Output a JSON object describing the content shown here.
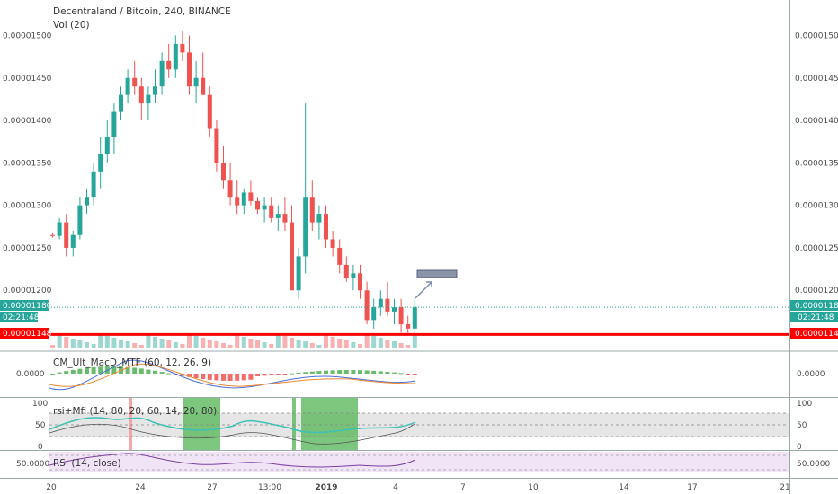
{
  "title": "Decentraland / Bitcoin, 240, BINANCE",
  "vol_label": "Vol (20)",
  "price_axis": {
    "ticks": [
      "0.00001500",
      "0.00001450",
      "0.00001400",
      "0.00001350",
      "0.00001300",
      "0.00001250",
      "0.00001200"
    ],
    "current_price": "0.00001180",
    "countdown": "02:21:48",
    "support_label": "0.00001148"
  },
  "macd": {
    "label": "CM_Ult_MacD_MTF (60, 12, 26, 9)",
    "tick": "0.0000"
  },
  "rsimfi": {
    "label": "rsi+Mfi (14, 80, 20, 60, 14, 20, 80)",
    "ticks": [
      "100",
      "50",
      "0"
    ]
  },
  "rsi": {
    "label": "RSI (14, close)",
    "tick": "50.0000"
  },
  "time_axis": [
    "20",
    "24",
    "27",
    "13:00",
    "2019",
    "4",
    "7",
    "10",
    "14",
    "17",
    "21"
  ],
  "colors": {
    "up": "#26a69a",
    "down": "#ef5350",
    "support": "#ff0000",
    "current": "#26a69a",
    "rsi_line": "#7b3fa0",
    "rsi_band": "#f1e4f7",
    "green_zone": "#5cb85c",
    "pink_zone": "#f4a7a7"
  },
  "chart_data": {
    "type": "candlestick",
    "pair": "MANA/BTC",
    "interval": "240",
    "ylim": [
      1.14e-05,
      1.51e-05
    ],
    "support": 1.148e-05,
    "last": 1.18e-05,
    "series": [
      {
        "values": [
          [
            1.265,
            1.268,
            1.262,
            1.264
          ],
          [
            1.264,
            1.285,
            1.26,
            1.28
          ],
          [
            1.28,
            1.29,
            1.24,
            1.25
          ],
          [
            1.25,
            1.27,
            1.24,
            1.265
          ],
          [
            1.265,
            1.31,
            1.26,
            1.3
          ],
          [
            1.3,
            1.32,
            1.29,
            1.31
          ],
          [
            1.31,
            1.35,
            1.3,
            1.34
          ],
          [
            1.34,
            1.38,
            1.32,
            1.36
          ],
          [
            1.36,
            1.4,
            1.35,
            1.38
          ],
          [
            1.38,
            1.42,
            1.36,
            1.41
          ],
          [
            1.41,
            1.44,
            1.4,
            1.43
          ],
          [
            1.43,
            1.46,
            1.42,
            1.45
          ],
          [
            1.45,
            1.47,
            1.43,
            1.44
          ],
          [
            1.44,
            1.45,
            1.4,
            1.42
          ],
          [
            1.42,
            1.44,
            1.4,
            1.43
          ],
          [
            1.43,
            1.46,
            1.42,
            1.44
          ],
          [
            1.44,
            1.48,
            1.43,
            1.47
          ],
          [
            1.47,
            1.49,
            1.45,
            1.46
          ],
          [
            1.46,
            1.5,
            1.45,
            1.49
          ],
          [
            1.49,
            1.505,
            1.47,
            1.48
          ],
          [
            1.48,
            1.5,
            1.43,
            1.44
          ],
          [
            1.44,
            1.47,
            1.42,
            1.45
          ],
          [
            1.45,
            1.48,
            1.44,
            1.43
          ],
          [
            1.43,
            1.44,
            1.38,
            1.39
          ],
          [
            1.39,
            1.4,
            1.34,
            1.35
          ],
          [
            1.35,
            1.37,
            1.32,
            1.33
          ],
          [
            1.33,
            1.35,
            1.3,
            1.31
          ],
          [
            1.31,
            1.33,
            1.29,
            1.3
          ],
          [
            1.3,
            1.32,
            1.29,
            1.315
          ],
          [
            1.315,
            1.33,
            1.3,
            1.305
          ],
          [
            1.305,
            1.31,
            1.29,
            1.295
          ],
          [
            1.295,
            1.31,
            1.28,
            1.3
          ],
          [
            1.3,
            1.31,
            1.28,
            1.285
          ],
          [
            1.285,
            1.3,
            1.27,
            1.29
          ],
          [
            1.29,
            1.31,
            1.27,
            1.28
          ],
          [
            1.28,
            1.3,
            1.25,
            1.2
          ],
          [
            1.2,
            1.25,
            1.19,
            1.24
          ],
          [
            1.24,
            1.42,
            1.22,
            1.31
          ],
          [
            1.31,
            1.33,
            1.27,
            1.28
          ],
          [
            1.28,
            1.3,
            1.26,
            1.29
          ],
          [
            1.29,
            1.3,
            1.25,
            1.26
          ],
          [
            1.26,
            1.27,
            1.24,
            1.25
          ],
          [
            1.25,
            1.26,
            1.22,
            1.23
          ],
          [
            1.23,
            1.24,
            1.21,
            1.215
          ],
          [
            1.215,
            1.23,
            1.2,
            1.22
          ],
          [
            1.22,
            1.23,
            1.19,
            1.2
          ],
          [
            1.2,
            1.21,
            1.16,
            1.165
          ],
          [
            1.165,
            1.19,
            1.155,
            1.18
          ],
          [
            1.18,
            1.2,
            1.17,
            1.19
          ],
          [
            1.19,
            1.21,
            1.17,
            1.175
          ],
          [
            1.175,
            1.19,
            1.16,
            1.18
          ],
          [
            1.18,
            1.19,
            1.15,
            1.16
          ],
          [
            1.16,
            1.17,
            1.15,
            1.155
          ],
          [
            1.155,
            1.19,
            1.15,
            1.18
          ]
        ]
      }
    ]
  }
}
